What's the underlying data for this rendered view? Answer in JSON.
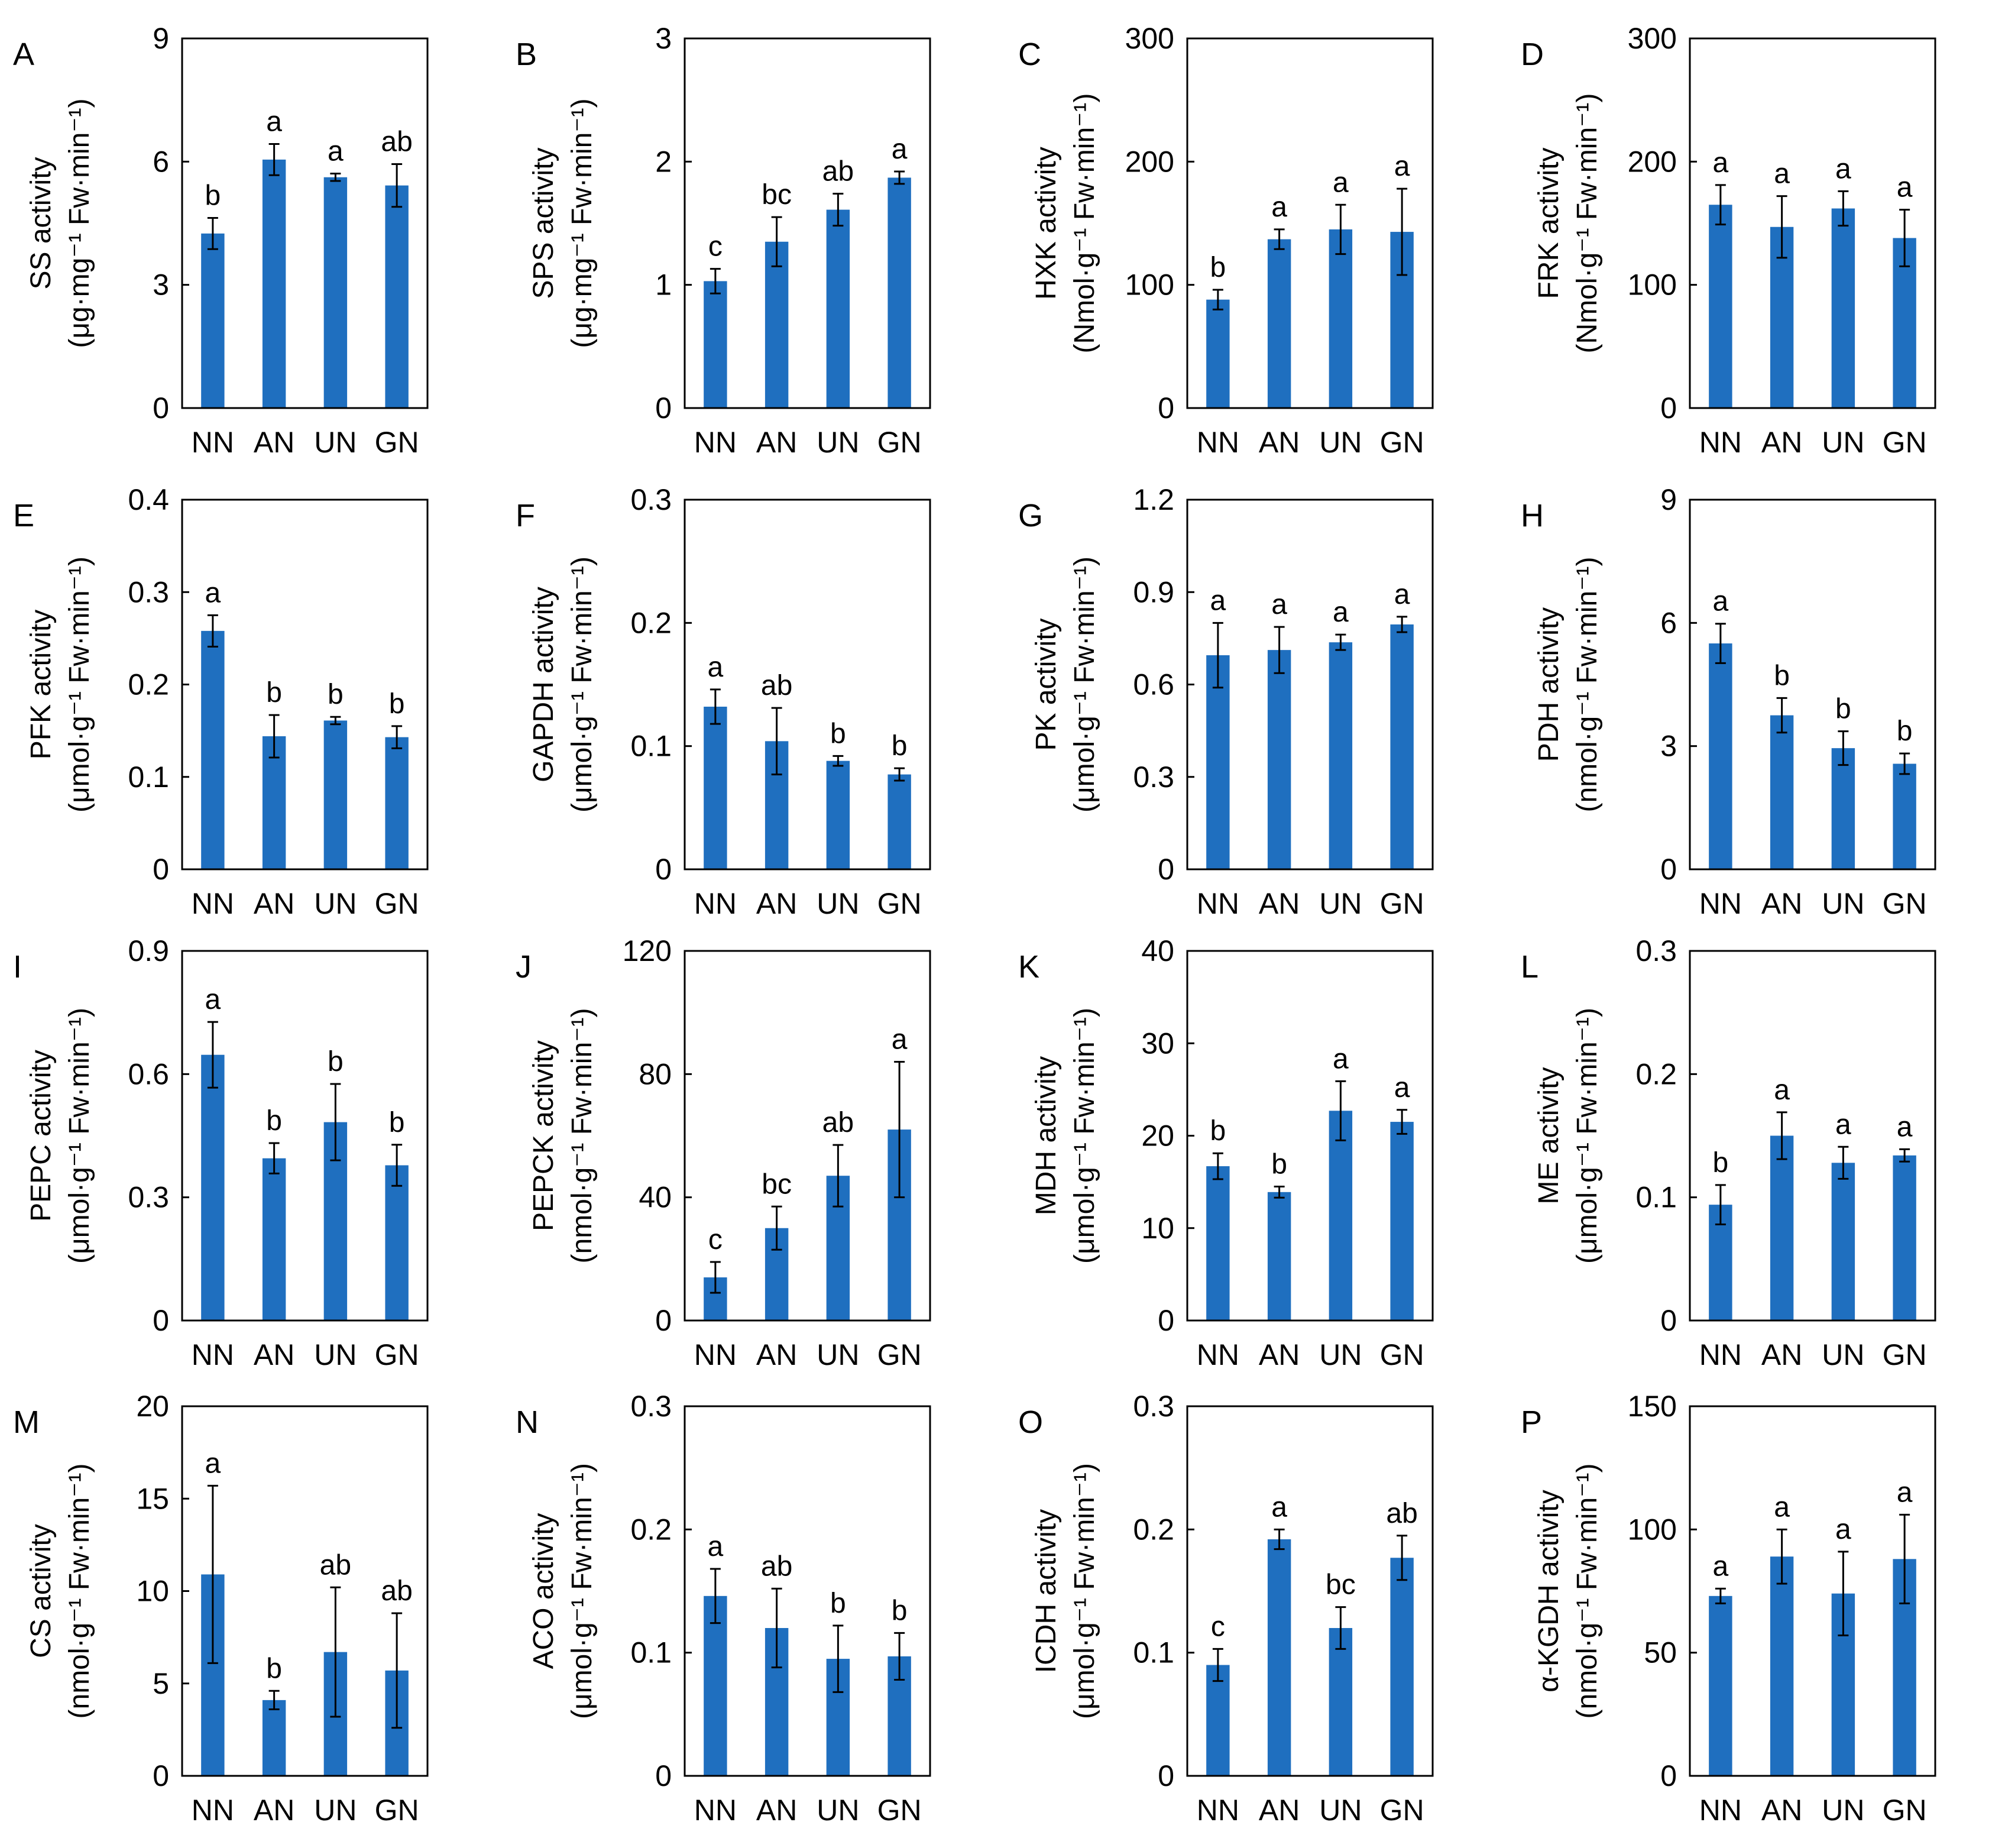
{
  "colors": {
    "bar": "#1f6fbf",
    "axis": "#000000",
    "background": "#ffffff"
  },
  "chart_data": [
    {
      "panel": "A",
      "type": "bar",
      "categories": [
        "NN",
        "AN",
        "UN",
        "GN"
      ],
      "ylabel_main": "SS activity",
      "ylabel_unit": "(μg·mg⁻¹ Fw·min⁻¹)",
      "ylim": [
        0,
        9
      ],
      "yticks": [
        0,
        3,
        6,
        9
      ],
      "ytick_labels": [
        "0",
        "3",
        "6",
        "9"
      ],
      "values": [
        4.25,
        6.05,
        5.62,
        5.42
      ],
      "errors": [
        0.38,
        0.38,
        0.09,
        0.52
      ],
      "letters": [
        "b",
        "a",
        "a",
        "ab"
      ]
    },
    {
      "panel": "B",
      "type": "bar",
      "categories": [
        "NN",
        "AN",
        "UN",
        "GN"
      ],
      "ylabel_main": "SPS activity",
      "ylabel_unit": "(μg·mg⁻¹ Fw·min⁻¹)",
      "ylim": [
        0,
        3
      ],
      "yticks": [
        0,
        1,
        2,
        3
      ],
      "ytick_labels": [
        "0",
        "1",
        "2",
        "3"
      ],
      "values": [
        1.03,
        1.35,
        1.61,
        1.87
      ],
      "errors": [
        0.1,
        0.2,
        0.13,
        0.05
      ],
      "letters": [
        "c",
        "bc",
        "ab",
        "a"
      ]
    },
    {
      "panel": "C",
      "type": "bar",
      "categories": [
        "NN",
        "AN",
        "UN",
        "GN"
      ],
      "ylabel_main": "HXK activity",
      "ylabel_unit": "(Nmol·g⁻¹ Fw·min⁻¹)",
      "ylim": [
        0,
        300
      ],
      "yticks": [
        0,
        100,
        200,
        300
      ],
      "ytick_labels": [
        "0",
        "100",
        "200",
        "300"
      ],
      "values": [
        88,
        137,
        145,
        143
      ],
      "errors": [
        8,
        8,
        20,
        35
      ],
      "letters": [
        "b",
        "a",
        "a",
        "a"
      ]
    },
    {
      "panel": "D",
      "type": "bar",
      "categories": [
        "NN",
        "AN",
        "UN",
        "GN"
      ],
      "ylabel_main": "FRK activity",
      "ylabel_unit": "(Nmol·g⁻¹ Fw·min⁻¹)",
      "ylim": [
        0,
        300
      ],
      "yticks": [
        0,
        100,
        200,
        300
      ],
      "ytick_labels": [
        "0",
        "100",
        "200",
        "300"
      ],
      "values": [
        165,
        147,
        162,
        138
      ],
      "errors": [
        16,
        25,
        14,
        23
      ],
      "letters": [
        "a",
        "a",
        "a",
        "a"
      ]
    },
    {
      "panel": "E",
      "type": "bar",
      "categories": [
        "NN",
        "AN",
        "UN",
        "GN"
      ],
      "ylabel_main": "PFK activity",
      "ylabel_unit": "(μmol·g⁻¹ Fw·min⁻¹)",
      "ylim": [
        0,
        0.4
      ],
      "yticks": [
        0,
        0.1,
        0.2,
        0.3,
        0.4
      ],
      "ytick_labels": [
        "0",
        "0.1",
        "0.2",
        "0.3",
        "0.4"
      ],
      "values": [
        0.258,
        0.144,
        0.161,
        0.143
      ],
      "errors": [
        0.017,
        0.023,
        0.004,
        0.012
      ],
      "letters": [
        "a",
        "b",
        "b",
        "b"
      ]
    },
    {
      "panel": "F",
      "type": "bar",
      "categories": [
        "NN",
        "AN",
        "UN",
        "GN"
      ],
      "ylabel_main": "GAPDH activity",
      "ylabel_unit": "(μmol·g⁻¹ Fw·min⁻¹)",
      "ylim": [
        0,
        0.3
      ],
      "yticks": [
        0,
        0.1,
        0.2,
        0.3
      ],
      "ytick_labels": [
        "0",
        "0.1",
        "0.2",
        "0.3"
      ],
      "values": [
        0.132,
        0.104,
        0.088,
        0.077
      ],
      "errors": [
        0.014,
        0.027,
        0.004,
        0.005
      ],
      "letters": [
        "a",
        "ab",
        "b",
        "b"
      ]
    },
    {
      "panel": "G",
      "type": "bar",
      "categories": [
        "NN",
        "AN",
        "UN",
        "GN"
      ],
      "ylabel_main": "PK activity",
      "ylabel_unit": "(μmol·g⁻¹ Fw·min⁻¹)",
      "ylim": [
        0,
        1.2
      ],
      "yticks": [
        0,
        0.3,
        0.6,
        0.9,
        1.2
      ],
      "ytick_labels": [
        "0",
        "0.3",
        "0.6",
        "0.9",
        "1.2"
      ],
      "values": [
        0.695,
        0.712,
        0.737,
        0.795
      ],
      "errors": [
        0.105,
        0.075,
        0.025,
        0.025
      ],
      "letters": [
        "a",
        "a",
        "a",
        "a"
      ]
    },
    {
      "panel": "H",
      "type": "bar",
      "categories": [
        "NN",
        "AN",
        "UN",
        "GN"
      ],
      "ylabel_main": "PDH activity",
      "ylabel_unit": "(nmol·g⁻¹ Fw·min⁻¹)",
      "ylim": [
        0,
        9
      ],
      "yticks": [
        0,
        3,
        6,
        9
      ],
      "ytick_labels": [
        "0",
        "3",
        "6",
        "9"
      ],
      "values": [
        5.5,
        3.75,
        2.95,
        2.57
      ],
      "errors": [
        0.48,
        0.42,
        0.41,
        0.25
      ],
      "letters": [
        "a",
        "b",
        "b",
        "b"
      ]
    },
    {
      "panel": "I",
      "type": "bar",
      "categories": [
        "NN",
        "AN",
        "UN",
        "GN"
      ],
      "ylabel_main": "PEPC activity",
      "ylabel_unit": "(μmol·g⁻¹ Fw·min⁻¹)",
      "ylim": [
        0,
        0.9
      ],
      "yticks": [
        0,
        0.3,
        0.6,
        0.9
      ],
      "ytick_labels": [
        "0",
        "0.3",
        "0.6",
        "0.9"
      ],
      "values": [
        0.647,
        0.395,
        0.483,
        0.378
      ],
      "errors": [
        0.08,
        0.037,
        0.093,
        0.05
      ],
      "letters": [
        "a",
        "b",
        "b",
        "b"
      ]
    },
    {
      "panel": "J",
      "type": "bar",
      "categories": [
        "NN",
        "AN",
        "UN",
        "GN"
      ],
      "ylabel_main": "PEPCK activity",
      "ylabel_unit": "(nmol·g⁻¹ Fw·min⁻¹)",
      "ylim": [
        0,
        120
      ],
      "yticks": [
        0,
        40,
        80,
        120
      ],
      "ytick_labels": [
        "0",
        "40",
        "80",
        "120"
      ],
      "values": [
        14,
        30,
        47,
        62
      ],
      "errors": [
        5,
        7,
        10,
        22
      ],
      "letters": [
        "c",
        "bc",
        "ab",
        "a"
      ]
    },
    {
      "panel": "K",
      "type": "bar",
      "categories": [
        "NN",
        "AN",
        "UN",
        "GN"
      ],
      "ylabel_main": "MDH activity",
      "ylabel_unit": "(μmol·g⁻¹ Fw·min⁻¹)",
      "ylim": [
        0,
        40
      ],
      "yticks": [
        0,
        10,
        20,
        30,
        40
      ],
      "ytick_labels": [
        "0",
        "10",
        "20",
        "30",
        "40"
      ],
      "values": [
        16.7,
        13.9,
        22.7,
        21.5
      ],
      "errors": [
        1.4,
        0.6,
        3.2,
        1.3
      ],
      "letters": [
        "b",
        "b",
        "a",
        "a"
      ]
    },
    {
      "panel": "L",
      "type": "bar",
      "categories": [
        "NN",
        "AN",
        "UN",
        "GN"
      ],
      "ylabel_main": "ME activity",
      "ylabel_unit": "(μmol·g⁻¹ Fw·min⁻¹)",
      "ylim": [
        0,
        0.3
      ],
      "yticks": [
        0,
        0.1,
        0.2,
        0.3
      ],
      "ytick_labels": [
        "0",
        "0.1",
        "0.2",
        "0.3"
      ],
      "values": [
        0.094,
        0.15,
        0.128,
        0.134
      ],
      "errors": [
        0.016,
        0.019,
        0.013,
        0.005
      ],
      "letters": [
        "b",
        "a",
        "a",
        "a"
      ]
    },
    {
      "panel": "M",
      "type": "bar",
      "categories": [
        "NN",
        "AN",
        "UN",
        "GN"
      ],
      "ylabel_main": "CS activity",
      "ylabel_unit": "(nmol·g⁻¹ Fw·min⁻¹)",
      "ylim": [
        0,
        20
      ],
      "yticks": [
        0,
        5,
        10,
        15,
        20
      ],
      "ytick_labels": [
        "0",
        "5",
        "10",
        "15",
        "20"
      ],
      "values": [
        10.9,
        4.1,
        6.7,
        5.7
      ],
      "errors": [
        4.8,
        0.5,
        3.5,
        3.1
      ],
      "letters": [
        "a",
        "b",
        "ab",
        "ab"
      ]
    },
    {
      "panel": "N",
      "type": "bar",
      "categories": [
        "NN",
        "AN",
        "UN",
        "GN"
      ],
      "ylabel_main": "ACO activity",
      "ylabel_unit": "(μmol·g⁻¹ Fw·min⁻¹)",
      "ylim": [
        0,
        0.3
      ],
      "yticks": [
        0,
        0.1,
        0.2,
        0.3
      ],
      "ytick_labels": [
        "0",
        "0.1",
        "0.2",
        "0.3"
      ],
      "values": [
        0.146,
        0.12,
        0.095,
        0.097
      ],
      "errors": [
        0.022,
        0.032,
        0.027,
        0.019
      ],
      "letters": [
        "a",
        "ab",
        "b",
        "b"
      ]
    },
    {
      "panel": "O",
      "type": "bar",
      "categories": [
        "NN",
        "AN",
        "UN",
        "GN"
      ],
      "ylabel_main": "ICDH activity",
      "ylabel_unit": "(μmol·g⁻¹ Fw·min⁻¹)",
      "ylim": [
        0,
        0.3
      ],
      "yticks": [
        0,
        0.1,
        0.2,
        0.3
      ],
      "ytick_labels": [
        "0",
        "0.1",
        "0.2",
        "0.3"
      ],
      "values": [
        0.09,
        0.192,
        0.12,
        0.177
      ],
      "errors": [
        0.013,
        0.008,
        0.017,
        0.018
      ],
      "letters": [
        "c",
        "a",
        "bc",
        "ab"
      ]
    },
    {
      "panel": "P",
      "type": "bar",
      "categories": [
        "NN",
        "AN",
        "UN",
        "GN"
      ],
      "ylabel_main": "α-KGDH activity",
      "ylabel_unit": "(nmol·g⁻¹ Fw·min⁻¹)",
      "ylim": [
        0,
        150
      ],
      "yticks": [
        0,
        50,
        100,
        150
      ],
      "ytick_labels": [
        "0",
        "50",
        "100",
        "150"
      ],
      "values": [
        73,
        89,
        74,
        88
      ],
      "errors": [
        3,
        11,
        17,
        18
      ],
      "letters": [
        "a",
        "a",
        "a",
        "a"
      ]
    }
  ]
}
